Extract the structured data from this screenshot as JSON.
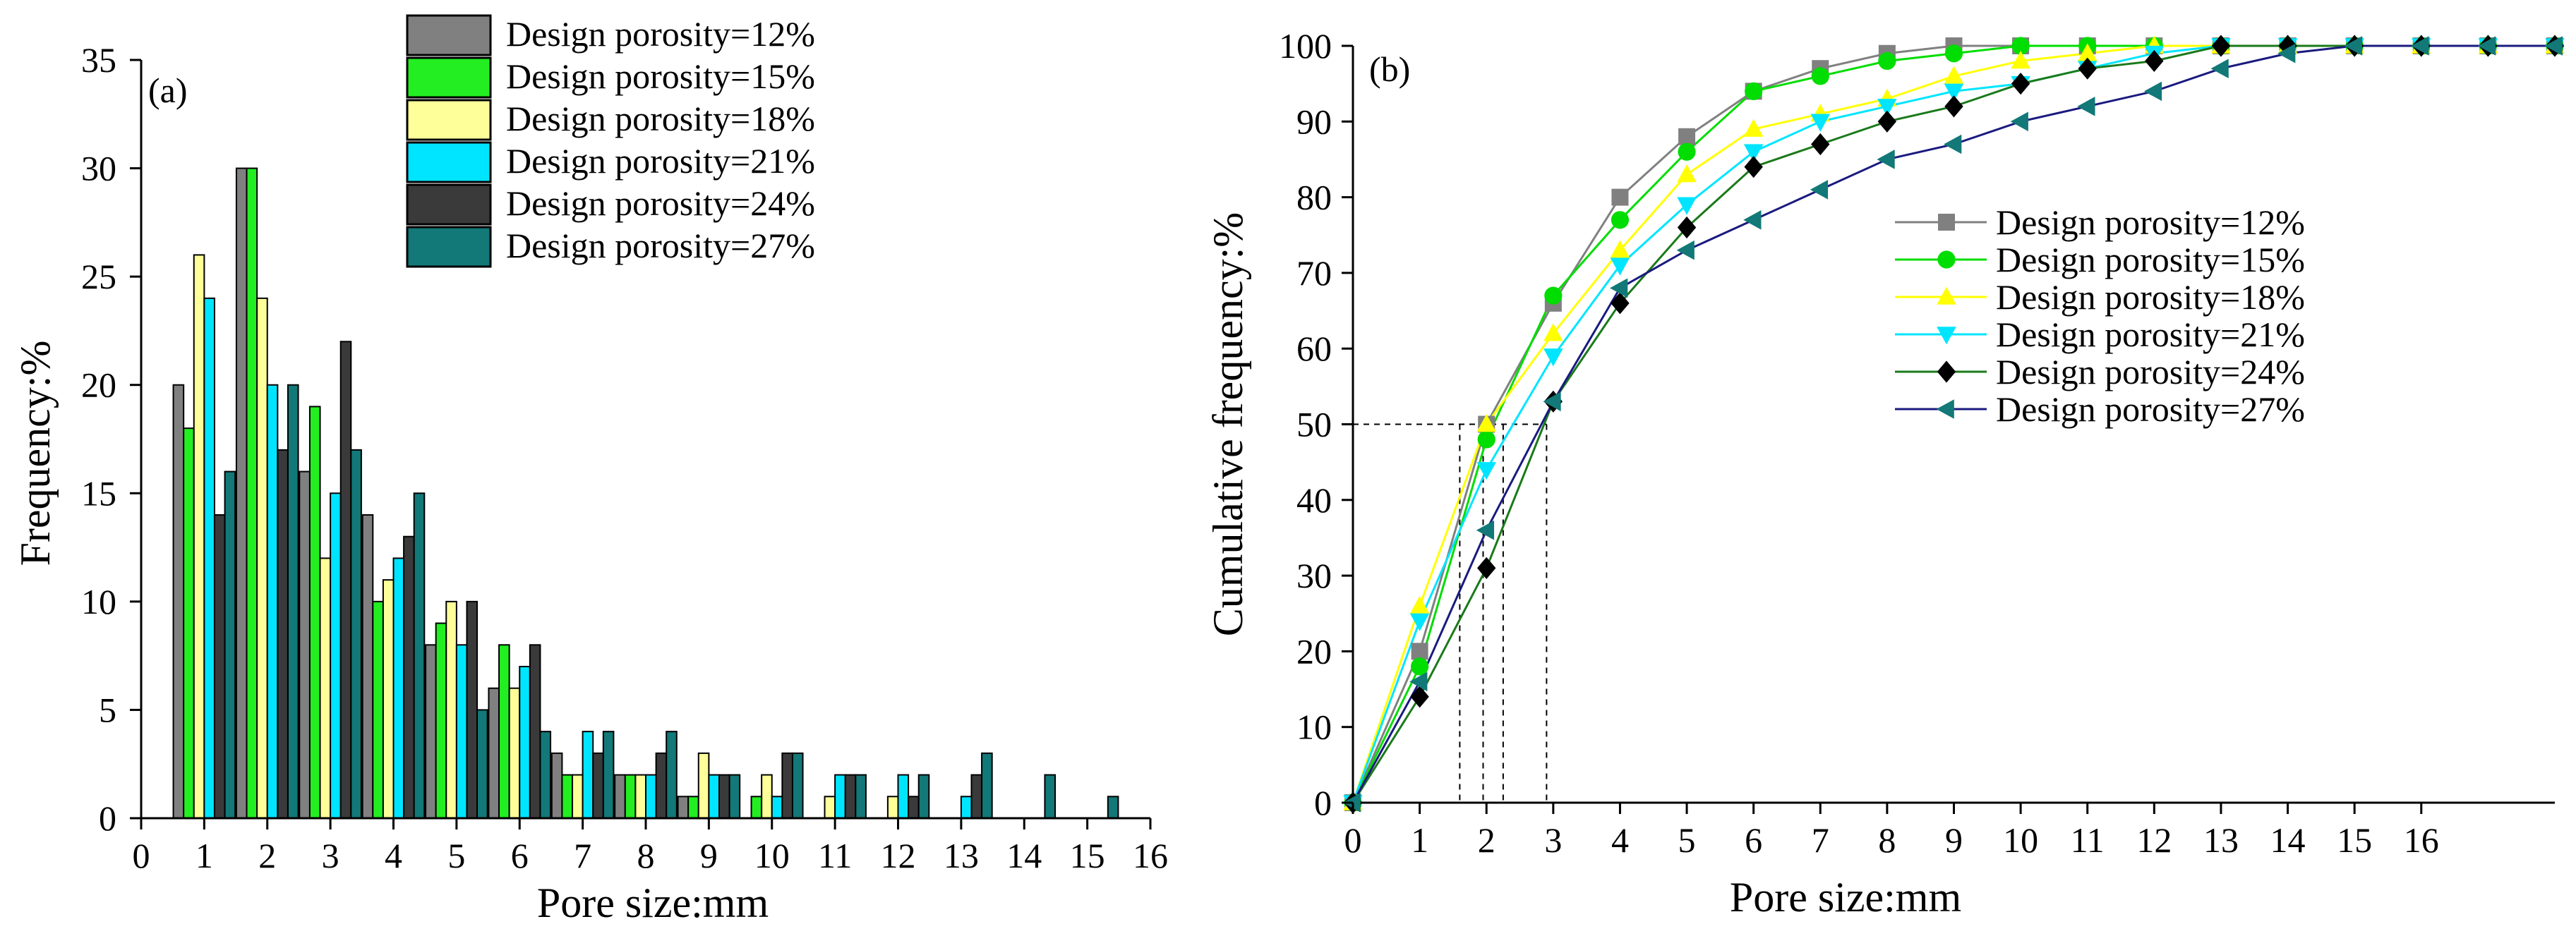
{
  "chart_data": [
    {
      "type": "bar",
      "panel_label": "(a)",
      "xlabel": "Pore size:mm",
      "ylabel": "Frequency:%",
      "xlim": [
        0,
        16
      ],
      "ylim": [
        0,
        35
      ],
      "x_ticks": [
        "0",
        "1",
        "2",
        "3",
        "4",
        "5",
        "6",
        "7",
        "8",
        "9",
        "10",
        "11",
        "12",
        "13",
        "14",
        "15",
        "16"
      ],
      "y_ticks": [
        "0",
        "5",
        "10",
        "15",
        "20",
        "25",
        "30",
        "35"
      ],
      "bin_centers": [
        1,
        2,
        3,
        4,
        5,
        6,
        7,
        8,
        9,
        10,
        11,
        12,
        13,
        14,
        15
      ],
      "legend_position": "top-center",
      "series": [
        {
          "name": "Design porosity=12%",
          "color": "#808080",
          "values": [
            20,
            30,
            16,
            14,
            8,
            6,
            3,
            2,
            1,
            0,
            0,
            0,
            0,
            0,
            0
          ]
        },
        {
          "name": "Design porosity=15%",
          "color": "#22ee22",
          "values": [
            18,
            30,
            19,
            10,
            9,
            8,
            2,
            2,
            1,
            1,
            0,
            0,
            0,
            0,
            0
          ]
        },
        {
          "name": "Design porosity=18%",
          "color": "#ffff99",
          "values": [
            26,
            24,
            12,
            11,
            10,
            6,
            2,
            2,
            3,
            2,
            1,
            1,
            0,
            0,
            0
          ]
        },
        {
          "name": "Design porosity=21%",
          "color": "#00e5ff",
          "values": [
            24,
            20,
            15,
            12,
            8,
            7,
            4,
            2,
            2,
            1,
            2,
            2,
            1,
            0,
            0
          ]
        },
        {
          "name": "Design porosity=24%",
          "color": "#3a3a3a",
          "values": [
            14,
            17,
            22,
            13,
            10,
            8,
            3,
            3,
            2,
            3,
            2,
            1,
            2,
            0,
            0
          ]
        },
        {
          "name": "Design porosity=27%",
          "color": "#127878",
          "values": [
            16,
            20,
            17,
            15,
            5,
            4,
            4,
            4,
            2,
            3,
            2,
            2,
            3,
            2,
            1
          ]
        }
      ]
    },
    {
      "type": "line",
      "panel_label": "(b)",
      "xlabel": "Pore size:mm",
      "ylabel": "Cumulative frequency:%",
      "xlim": [
        0,
        18
      ],
      "ylim": [
        0,
        100
      ],
      "x_ticks": [
        "0",
        "1",
        "2",
        "3",
        "4",
        "5",
        "6",
        "7",
        "8",
        "9",
        "10",
        "11",
        "12",
        "13",
        "14",
        "15",
        "16"
      ],
      "y_ticks": [
        "0",
        "10",
        "20",
        "30",
        "40",
        "50",
        "60",
        "70",
        "80",
        "90",
        "100"
      ],
      "x": [
        0,
        1,
        2,
        3,
        4,
        5,
        6,
        7,
        8,
        9,
        10,
        11,
        12,
        13,
        14,
        15,
        16,
        17,
        18
      ],
      "reference_lines": {
        "y": 50,
        "x": [
          1.6,
          1.95,
          2.25,
          2.9
        ]
      },
      "legend_position": "center-right",
      "series": [
        {
          "name": "Design porosity=12%",
          "color": "#808080",
          "marker": "square",
          "values": [
            0,
            20,
            50,
            66,
            80,
            88,
            94,
            97,
            99,
            100,
            100,
            100,
            100,
            100,
            100,
            100,
            100,
            100,
            100
          ]
        },
        {
          "name": "Design porosity=15%",
          "color": "#00dd00",
          "marker": "circle",
          "values": [
            0,
            18,
            48,
            67,
            77,
            86,
            94,
            96,
            98,
            99,
            100,
            100,
            100,
            100,
            100,
            100,
            100,
            100,
            100
          ]
        },
        {
          "name": "Design porosity=18%",
          "color": "#ffff00",
          "marker": "triangle-up",
          "values": [
            0,
            26,
            50,
            62,
            73,
            83,
            89,
            91,
            93,
            96,
            98,
            99,
            100,
            100,
            100,
            100,
            100,
            100,
            100
          ]
        },
        {
          "name": "Design porosity=21%",
          "color": "#00e5ff",
          "marker": "triangle-down",
          "values": [
            0,
            24,
            44,
            59,
            71,
            79,
            86,
            90,
            92,
            94,
            95,
            97,
            99,
            100,
            100,
            100,
            100,
            100,
            100
          ]
        },
        {
          "name": "Design porosity=24%",
          "color": "#000000",
          "line_color": "#1a7a1a",
          "marker": "diamond",
          "values": [
            0,
            14,
            31,
            53,
            66,
            76,
            84,
            87,
            90,
            92,
            95,
            97,
            98,
            100,
            100,
            100,
            100,
            100,
            100
          ]
        },
        {
          "name": "Design porosity=27%",
          "color": "#127878",
          "line_color": "#1a1a80",
          "marker": "triangle-left",
          "values": [
            0,
            16,
            36,
            53,
            68,
            73,
            77,
            81,
            85,
            87,
            90,
            92,
            94,
            97,
            99,
            100,
            100,
            100,
            100
          ]
        }
      ]
    }
  ]
}
